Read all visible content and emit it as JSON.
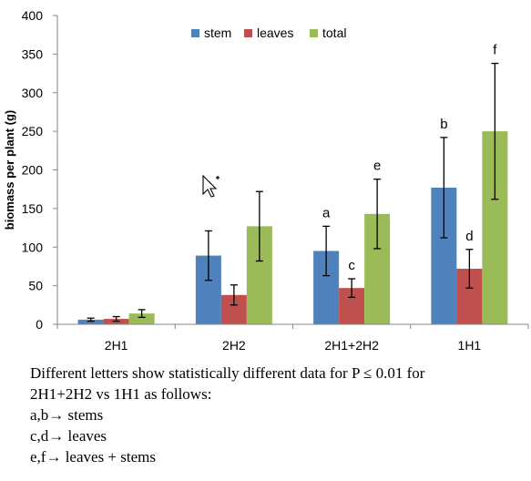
{
  "chart_data": {
    "type": "bar",
    "title": "",
    "xlabel": "",
    "ylabel": "biomass per plant (g)",
    "ylim": [
      0,
      400
    ],
    "yticks": [
      0,
      50,
      100,
      150,
      200,
      250,
      300,
      350,
      400
    ],
    "grid": false,
    "legend_position": "top-center",
    "categories": [
      "2H1",
      "2H2",
      "2H1+2H2",
      "1H1"
    ],
    "series": [
      {
        "name": "stem",
        "color": "#4f81bd",
        "values": [
          6,
          89,
          95,
          177
        ],
        "errors": [
          2,
          32,
          32,
          65
        ],
        "annotations": [
          "",
          "",
          "a",
          "b"
        ]
      },
      {
        "name": "leaves",
        "color": "#c0504d",
        "values": [
          7,
          38,
          47,
          72
        ],
        "errors": [
          3,
          13,
          12,
          25
        ],
        "annotations": [
          "",
          "",
          "c",
          "d"
        ]
      },
      {
        "name": "total",
        "color": "#9bbb59",
        "values": [
          14,
          127,
          143,
          250
        ],
        "errors": [
          5,
          45,
          45,
          88
        ],
        "annotations": [
          "",
          "",
          "e",
          "f"
        ]
      }
    ]
  },
  "caption": {
    "line1": "Different letters show statistically different data for P ≤ 0.01 for",
    "line2": "2H1+2H2 vs 1H1 as follows:",
    "line3": "a,b→ stems",
    "line4": "c,d→ leaves",
    "line5": "e,f→ leaves + stems"
  },
  "cursor_icon": "mouse-pointer-icon"
}
